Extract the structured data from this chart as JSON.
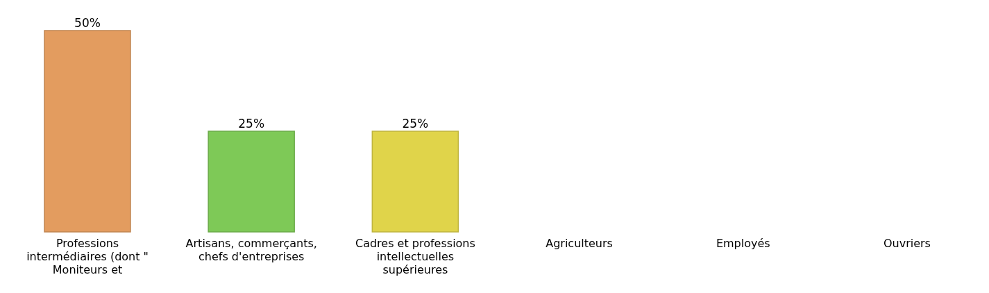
{
  "chart_data": {
    "type": "bar",
    "categories": [
      "Professions intermédiaires (dont \" Moniteurs et",
      "Artisans, commerçants, chefs d'entreprises",
      "Cadres et professions intellectuelles supérieures",
      "Agriculteurs",
      "Employés",
      "Ouvriers"
    ],
    "values": [
      50,
      25,
      25,
      0,
      0,
      0
    ],
    "colors": [
      "#e39c5f",
      "#7ec957",
      "#e0d44a",
      "#5b9bd5",
      "#a5a5a5",
      "#4472c4"
    ],
    "value_labels": [
      "50%",
      "25%",
      "25%",
      null,
      null,
      null
    ]
  }
}
